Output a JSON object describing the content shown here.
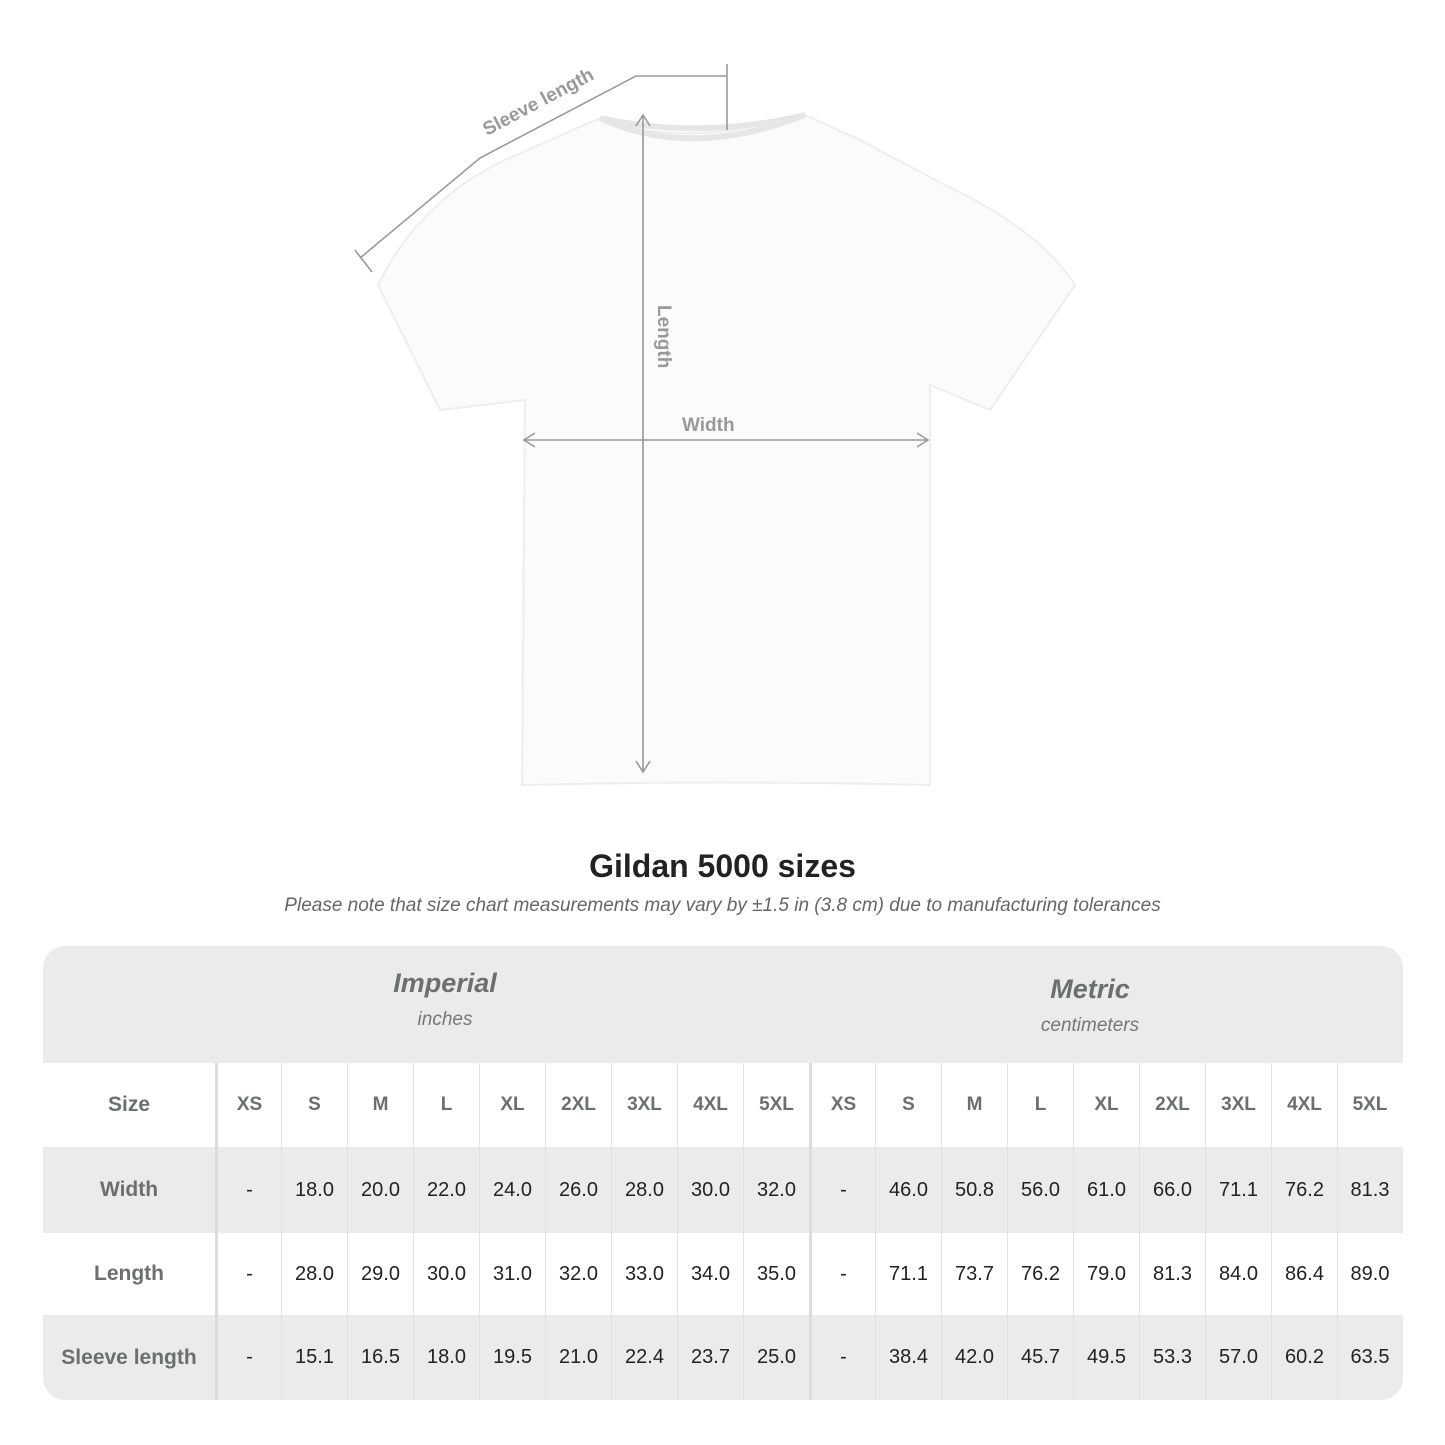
{
  "diagram": {
    "labels": {
      "sleeve": "Sleeve length",
      "length": "Length",
      "width": "Width"
    },
    "line_color": "#999999"
  },
  "title": "Gildan 5000 sizes",
  "note": "Please note that size chart measurements may vary by ±1.5 in (3.8 cm) due to manufacturing tolerances",
  "table": {
    "imperial": {
      "name": "Imperial",
      "unit": "inches"
    },
    "metric": {
      "name": "Metric",
      "unit": "centimeters"
    },
    "size_label": "Size",
    "sizes": [
      "XS",
      "S",
      "M",
      "L",
      "XL",
      "2XL",
      "3XL",
      "4XL",
      "5XL"
    ],
    "rows": [
      {
        "label": "Width",
        "imperial": [
          "-",
          "18.0",
          "20.0",
          "22.0",
          "24.0",
          "26.0",
          "28.0",
          "30.0",
          "32.0"
        ],
        "metric": [
          "-",
          "46.0",
          "50.8",
          "56.0",
          "61.0",
          "66.0",
          "71.1",
          "76.2",
          "81.3"
        ]
      },
      {
        "label": "Length",
        "imperial": [
          "-",
          "28.0",
          "29.0",
          "30.0",
          "31.0",
          "32.0",
          "33.0",
          "34.0",
          "35.0"
        ],
        "metric": [
          "-",
          "71.1",
          "73.7",
          "76.2",
          "79.0",
          "81.3",
          "84.0",
          "86.4",
          "89.0"
        ]
      },
      {
        "label": "Sleeve length",
        "imperial": [
          "-",
          "15.1",
          "16.5",
          "18.0",
          "19.5",
          "21.0",
          "22.4",
          "23.7",
          "25.0"
        ],
        "metric": [
          "-",
          "38.4",
          "42.0",
          "45.7",
          "49.5",
          "53.3",
          "57.0",
          "60.2",
          "63.5"
        ]
      }
    ]
  }
}
